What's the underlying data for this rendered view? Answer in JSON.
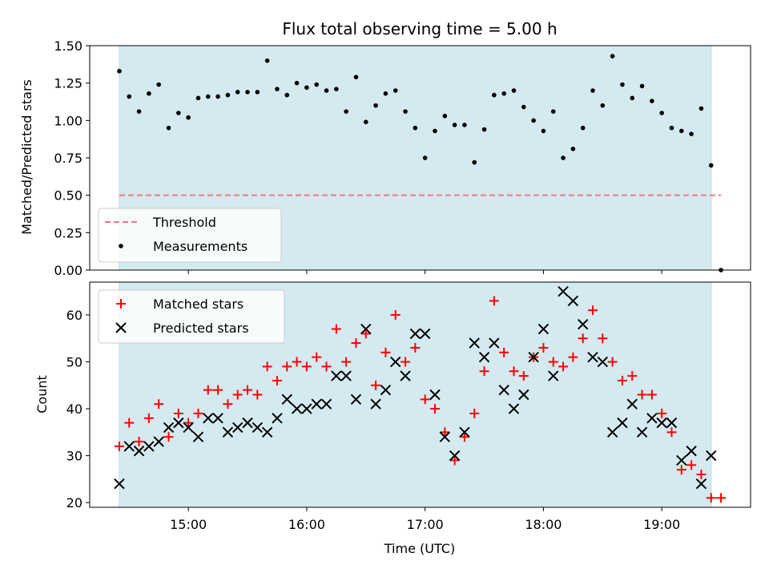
{
  "colors": {
    "span": "#d4eaf0",
    "threshold": "#f07878",
    "measurements": "#000000",
    "matched": "#ff0000",
    "predicted": "#000000"
  },
  "chart_data": [
    {
      "type": "scatter",
      "title": "Flux total observing time = 5.00 h",
      "xlabel": "",
      "ylabel": "Matched/Predicted stars",
      "xlim": [
        "14:10",
        "19:45"
      ],
      "ylim": [
        0,
        1.5
      ],
      "yticks": [
        "0.00",
        "0.25",
        "0.50",
        "0.75",
        "1.00",
        "1.25",
        "1.50"
      ],
      "shaded_span": [
        "14:25",
        "19:25"
      ],
      "legend": "lower-left",
      "threshold": {
        "name": "Threshold",
        "y": 0.5,
        "x": [
          "14:25",
          "19:30"
        ],
        "style": "dashed"
      },
      "series": [
        {
          "name": "Measurements",
          "x": [
            "14:25",
            "14:30",
            "14:35",
            "14:40",
            "14:45",
            "14:50",
            "14:55",
            "15:00",
            "15:05",
            "15:10",
            "15:15",
            "15:20",
            "15:25",
            "15:30",
            "15:35",
            "15:40",
            "15:45",
            "15:50",
            "15:55",
            "16:00",
            "16:05",
            "16:10",
            "16:15",
            "16:20",
            "16:25",
            "16:30",
            "16:35",
            "16:40",
            "16:45",
            "16:50",
            "16:55",
            "17:00",
            "17:05",
            "17:10",
            "17:15",
            "17:20",
            "17:25",
            "17:30",
            "17:35",
            "17:40",
            "17:45",
            "17:50",
            "17:55",
            "18:00",
            "18:05",
            "18:10",
            "18:15",
            "18:20",
            "18:25",
            "18:30",
            "18:35",
            "18:40",
            "18:45",
            "18:50",
            "18:55",
            "19:00",
            "19:05",
            "19:10",
            "19:15",
            "19:20",
            "19:25",
            "19:30"
          ],
          "y": [
            1.33,
            1.16,
            1.06,
            1.18,
            1.24,
            0.95,
            1.05,
            1.02,
            1.15,
            1.16,
            1.16,
            1.17,
            1.19,
            1.19,
            1.19,
            1.4,
            1.21,
            1.17,
            1.25,
            1.22,
            1.24,
            1.2,
            1.21,
            1.06,
            1.29,
            0.99,
            1.1,
            1.18,
            1.2,
            1.06,
            0.95,
            0.75,
            0.93,
            1.03,
            0.97,
            0.97,
            0.72,
            0.94,
            1.17,
            1.18,
            1.2,
            1.09,
            1.0,
            0.93,
            1.06,
            0.75,
            0.81,
            0.95,
            1.2,
            1.1,
            1.43,
            1.24,
            1.15,
            1.23,
            1.13,
            1.05,
            0.95,
            0.93,
            0.91,
            1.08,
            0.7,
            0.0
          ]
        }
      ]
    },
    {
      "type": "scatter",
      "title": "",
      "xlabel": "Time (UTC)",
      "ylabel": "Count",
      "xlim": [
        "14:10",
        "19:45"
      ],
      "ylim": [
        19,
        67
      ],
      "yticks": [
        "20",
        "30",
        "40",
        "50",
        "60"
      ],
      "xticks": [
        "15:00",
        "16:00",
        "17:00",
        "18:00",
        "19:00"
      ],
      "shaded_span": [
        "14:25",
        "19:25"
      ],
      "legend": "top-left",
      "series": [
        {
          "name": "Matched stars",
          "marker": "+",
          "x": [
            "14:25",
            "14:30",
            "14:35",
            "14:40",
            "14:45",
            "14:50",
            "14:55",
            "15:00",
            "15:05",
            "15:10",
            "15:15",
            "15:20",
            "15:25",
            "15:30",
            "15:35",
            "15:40",
            "15:45",
            "15:50",
            "15:55",
            "16:00",
            "16:05",
            "16:10",
            "16:15",
            "16:20",
            "16:25",
            "16:30",
            "16:35",
            "16:40",
            "16:45",
            "16:50",
            "16:55",
            "17:00",
            "17:05",
            "17:10",
            "17:15",
            "17:20",
            "17:25",
            "17:30",
            "17:35",
            "17:40",
            "17:45",
            "17:50",
            "17:55",
            "18:00",
            "18:05",
            "18:10",
            "18:15",
            "18:20",
            "18:25",
            "18:30",
            "18:35",
            "18:40",
            "18:45",
            "18:50",
            "18:55",
            "19:00",
            "19:05",
            "19:10",
            "19:15",
            "19:20",
            "19:25",
            "19:30"
          ],
          "y": [
            32,
            37,
            33,
            38,
            41,
            34,
            39,
            37,
            39,
            44,
            44,
            41,
            43,
            44,
            43,
            49,
            46,
            49,
            50,
            49,
            51,
            49,
            57,
            50,
            54,
            56,
            45,
            52,
            60,
            50,
            53,
            42,
            40,
            35,
            29,
            34,
            39,
            48,
            63,
            52,
            48,
            47,
            51,
            53,
            50,
            49,
            51,
            55,
            61,
            55,
            50,
            46,
            47,
            43,
            43,
            39,
            35,
            27,
            28,
            26,
            21,
            21
          ]
        },
        {
          "name": "Predicted stars",
          "marker": "x",
          "x": [
            "14:25",
            "14:30",
            "14:35",
            "14:40",
            "14:45",
            "14:50",
            "14:55",
            "15:00",
            "15:05",
            "15:10",
            "15:15",
            "15:20",
            "15:25",
            "15:30",
            "15:35",
            "15:40",
            "15:45",
            "15:50",
            "15:55",
            "16:00",
            "16:05",
            "16:10",
            "16:15",
            "16:20",
            "16:25",
            "16:30",
            "16:35",
            "16:40",
            "16:45",
            "16:50",
            "16:55",
            "17:00",
            "17:05",
            "17:10",
            "17:15",
            "17:20",
            "17:25",
            "17:30",
            "17:35",
            "17:40",
            "17:45",
            "17:50",
            "17:55",
            "18:00",
            "18:05",
            "18:10",
            "18:15",
            "18:20",
            "18:25",
            "18:30",
            "18:35",
            "18:40",
            "18:45",
            "18:50",
            "18:55",
            "19:00",
            "19:05",
            "19:10",
            "19:15",
            "19:20",
            "19:25"
          ],
          "y": [
            24,
            32,
            31,
            32,
            33,
            36,
            37,
            36,
            34,
            38,
            38,
            35,
            36,
            37,
            36,
            35,
            38,
            42,
            40,
            40,
            41,
            41,
            47,
            47,
            42,
            57,
            41,
            44,
            50,
            47,
            56,
            56,
            43,
            34,
            30,
            35,
            54,
            51,
            54,
            44,
            40,
            43,
            51,
            57,
            47,
            65,
            63,
            58,
            51,
            50,
            35,
            37,
            41,
            35,
            38,
            37,
            37,
            29,
            31,
            24,
            30
          ]
        }
      ]
    }
  ]
}
